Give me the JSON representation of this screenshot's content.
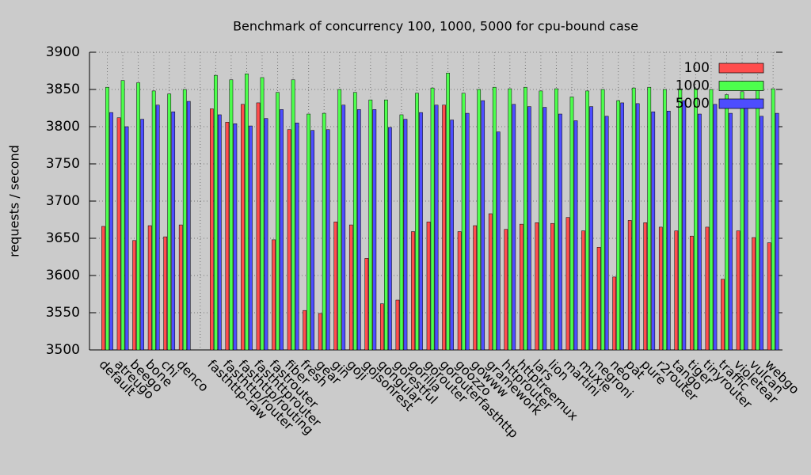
{
  "chart_data": {
    "type": "bar",
    "title": "Benchmark of concurrency 100, 1000, 5000 for cpu-bound case",
    "ylabel": "requests / second",
    "categories": [
      "default",
      "atreugo",
      "beego",
      "bone",
      "chi",
      "denco",
      null,
      "fasthttp-raw",
      "fasthttp/router",
      "fasthttp/routing",
      "fasthttprouter",
      "fastrouter",
      "fiber",
      "fresh",
      "gear",
      "gin",
      "goji",
      "gojsonrest",
      "gongular",
      "gorestful",
      "gorilla",
      "gorouter",
      "gorouterfasthttp",
      "goozzo",
      "gowww",
      "gramework",
      "httprouter",
      "httptreemux",
      "lars",
      "lion",
      "martini",
      "muxie",
      "negroni",
      "neo",
      "pat",
      "pure",
      "r2router",
      "tango",
      "tiger",
      "tinyrouter",
      "traffic",
      "violetear",
      "vulcan",
      "webgo"
    ],
    "series": [
      {
        "name": "100",
        "color": "#ff4d4d",
        "values": [
          3666,
          3812,
          3647,
          3667,
          3652,
          3668,
          null,
          3824,
          3806,
          3830,
          3832,
          3648,
          3796,
          3553,
          3549,
          3672,
          3668,
          3623,
          3562,
          3567,
          3659,
          3672,
          3829,
          3659,
          3667,
          3683,
          3662,
          3669,
          3671,
          3670,
          3678,
          3660,
          3638,
          3598,
          3674,
          3671,
          3665,
          3660,
          3653,
          3665,
          3595,
          3660,
          3651,
          3644
        ]
      },
      {
        "name": "1000",
        "color": "#4dff4d",
        "values": [
          3853,
          3862,
          3859,
          3848,
          3844,
          3850,
          null,
          3869,
          3863,
          3871,
          3866,
          3846,
          3863,
          3817,
          3818,
          3850,
          3846,
          3836,
          3836,
          3816,
          3845,
          3852,
          3872,
          3845,
          3850,
          3853,
          3851,
          3853,
          3848,
          3851,
          3840,
          3848,
          3850,
          3835,
          3852,
          3853,
          3850,
          3850,
          3851,
          3850,
          3843,
          3847,
          3849,
          3851
        ]
      },
      {
        "name": "5000",
        "color": "#4d4dff",
        "values": [
          3819,
          3800,
          3810,
          3829,
          3820,
          3834,
          null,
          3816,
          3804,
          3801,
          3811,
          3823,
          3805,
          3795,
          3796,
          3829,
          3823,
          3823,
          3799,
          3810,
          3819,
          3829,
          3809,
          3818,
          3835,
          3793,
          3830,
          3827,
          3826,
          3817,
          3808,
          3827,
          3814,
          3832,
          3831,
          3820,
          3821,
          3835,
          3817,
          3830,
          3818,
          3826,
          3814,
          3818
        ]
      }
    ],
    "ylim": [
      3500,
      3900
    ],
    "yticks": [
      3500,
      3550,
      3600,
      3650,
      3700,
      3750,
      3800,
      3850,
      3900
    ],
    "grid": true,
    "legend": "top-right"
  }
}
